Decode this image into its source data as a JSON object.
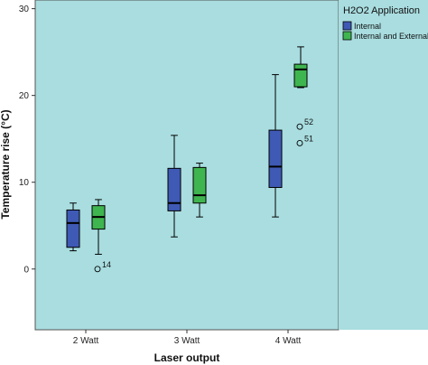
{
  "chart_data": {
    "type": "boxplot",
    "xlabel": "Laser output",
    "ylabel": "Temperature rise (°C)",
    "categories": [
      "2 Watt",
      "3 Watt",
      "4 Watt"
    ],
    "ylim": [
      -7,
      31
    ],
    "yticks": [
      0,
      10,
      20,
      30
    ],
    "grid": false,
    "legend": {
      "title": "H2O2 Application",
      "placement": "right",
      "entries": [
        "Internal",
        "Internal and External"
      ]
    },
    "series": [
      {
        "name": "Internal",
        "color": "#3f5ab5",
        "boxes": [
          {
            "category": "2 Watt",
            "min": 2.1,
            "q1": 2.5,
            "median": 5.3,
            "q3": 6.8,
            "max": 7.6,
            "outliers": []
          },
          {
            "category": "3 Watt",
            "min": 3.7,
            "q1": 6.7,
            "median": 7.6,
            "q3": 11.6,
            "max": 15.4,
            "outliers": []
          },
          {
            "category": "4 Watt",
            "min": 6.0,
            "q1": 9.4,
            "median": 11.8,
            "q3": 16.0,
            "max": 22.4,
            "outliers": []
          }
        ]
      },
      {
        "name": "Internal and External",
        "color": "#3fb54f",
        "boxes": [
          {
            "category": "2 Watt",
            "min": 1.7,
            "q1": 4.6,
            "median": 6.0,
            "q3": 7.3,
            "max": 8.0,
            "outliers": [
              {
                "value": 0.0,
                "label": "14"
              }
            ]
          },
          {
            "category": "3 Watt",
            "min": 6.0,
            "q1": 7.6,
            "median": 8.5,
            "q3": 11.7,
            "max": 12.2,
            "outliers": []
          },
          {
            "category": "4 Watt",
            "min": 20.9,
            "q1": 21.0,
            "median": 23.0,
            "q3": 23.6,
            "max": 25.6,
            "outliers": [
              {
                "value": 16.4,
                "label": "52"
              },
              {
                "value": 14.5,
                "label": "51"
              }
            ]
          }
        ]
      }
    ]
  }
}
